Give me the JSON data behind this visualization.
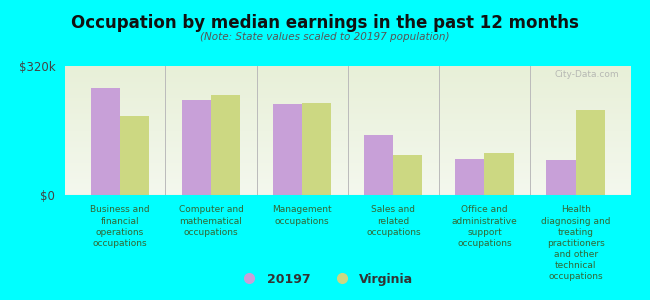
{
  "title": "Occupation by median earnings in the past 12 months",
  "subtitle": "(Note: State values scaled to 20197 population)",
  "background_color": "#00FFFF",
  "plot_bg_color_top": "#e8f0d8",
  "plot_bg_color_bottom": "#f4f8ee",
  "categories": [
    "Business and\nfinancial\noperations\noccupations",
    "Computer and\nmathematical\noccupations",
    "Management\noccupations",
    "Sales and\nrelated\noccupations",
    "Office and\nadministrative\nsupport\noccupations",
    "Health\ndiagnosing and\ntreating\npractitioners\nand other\ntechnical\noccupations"
  ],
  "values_20197": [
    265000,
    235000,
    225000,
    150000,
    90000,
    88000
  ],
  "values_virginia": [
    195000,
    248000,
    228000,
    100000,
    105000,
    210000
  ],
  "color_20197": "#c8a0d8",
  "color_virginia": "#ccd882",
  "ylim": [
    0,
    320000
  ],
  "yticks": [
    0,
    320000
  ],
  "ytick_labels": [
    "$0",
    "$320k"
  ],
  "legend_label_20197": "20197",
  "legend_label_virginia": "Virginia",
  "watermark": "City-Data.com"
}
